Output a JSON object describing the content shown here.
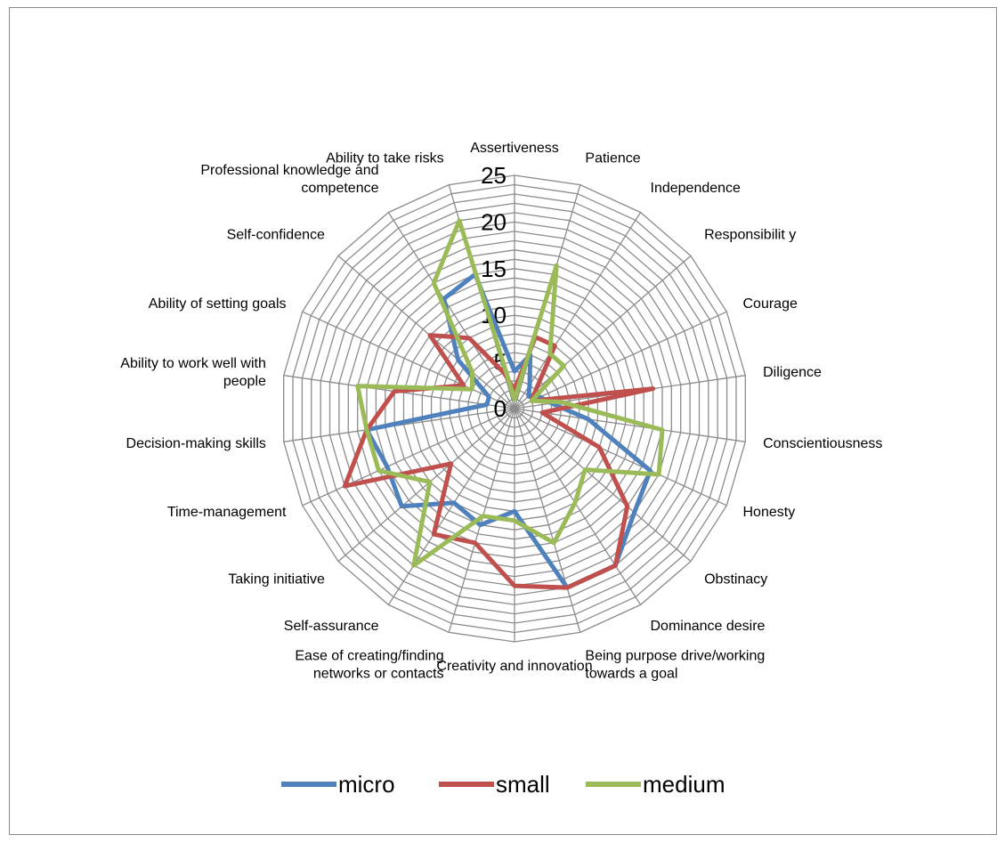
{
  "chart_data": {
    "type": "radar",
    "title": "",
    "rlim": [
      0,
      25
    ],
    "ticks": [
      "0",
      "5",
      "10",
      "15",
      "20",
      "25"
    ],
    "grid": true,
    "legend_position": "bottom",
    "categories": [
      [
        "Assertiveness"
      ],
      [
        "Patience"
      ],
      [
        "Independence"
      ],
      [
        "Responsibilit y"
      ],
      [
        "Courage"
      ],
      [
        "Diligence"
      ],
      [
        "Conscientiousness"
      ],
      [
        "Honesty"
      ],
      [
        "Obstinacy"
      ],
      [
        "Dominance desire"
      ],
      [
        "Being purpose drive/working",
        "towards a goal"
      ],
      [
        "Creativity and innovation"
      ],
      [
        "Ease of creating/finding",
        "networks or contacts"
      ],
      [
        "Self-assurance"
      ],
      [
        "Taking initiative"
      ],
      [
        "Time-management"
      ],
      [
        "Decision-making skills"
      ],
      [
        "Ability to work well with",
        "people"
      ],
      [
        "Ability of setting goals"
      ],
      [
        "Self-confidence"
      ],
      [
        "Professional knowledge and",
        "competence"
      ],
      [
        "Ability to take risks"
      ]
    ],
    "series": [
      {
        "name": "micro",
        "color": "#4f81bd",
        "values": [
          4,
          6,
          3,
          2,
          3,
          4,
          8,
          16,
          17,
          20,
          20,
          11,
          13,
          12,
          16,
          15,
          16,
          3,
          3,
          8,
          14,
          15
        ]
      },
      {
        "name": "small",
        "color": "#c0504d",
        "values": [
          2,
          8,
          8,
          3,
          2,
          15,
          3,
          10,
          16,
          20,
          20,
          19,
          15,
          16,
          9,
          20,
          16,
          13,
          6,
          12,
          9,
          4
        ]
      },
      {
        "name": "medium",
        "color": "#9bbb59",
        "values": [
          1,
          16,
          7,
          7,
          2,
          5,
          16,
          17,
          10,
          12,
          15,
          12,
          12,
          20,
          12,
          16,
          16,
          17,
          5,
          6,
          16,
          21
        ]
      }
    ]
  }
}
